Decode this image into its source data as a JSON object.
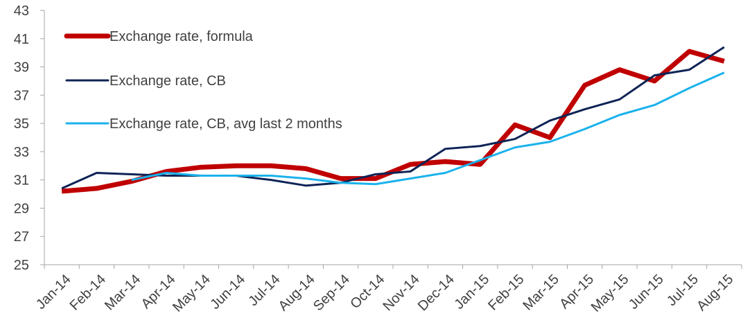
{
  "chart_data": {
    "type": "line",
    "categories": [
      "Jan-14",
      "Feb-14",
      "Mar-14",
      "Apr-14",
      "May-14",
      "Jun-14",
      "Jul-14",
      "Aug-14",
      "Sep-14",
      "Oct-14",
      "Nov-14",
      "Dec-14",
      "Jan-15",
      "Feb-15",
      "Mar-15",
      "Apr-15",
      "May-15",
      "Jun-15",
      "Jul-15",
      "Aug-15"
    ],
    "series": [
      {
        "name": "Exchange rate, formula",
        "color": "#c00000",
        "width": 7,
        "values": [
          30.2,
          30.4,
          30.9,
          31.6,
          31.9,
          32.0,
          32.0,
          31.8,
          31.1,
          31.1,
          32.1,
          32.3,
          32.1,
          34.9,
          34.0,
          37.7,
          38.8,
          38.0,
          40.1,
          39.4
        ]
      },
      {
        "name": "Exchange rate, CB",
        "color": "#0e2356",
        "width": 3,
        "values": [
          30.4,
          31.5,
          31.4,
          31.3,
          31.3,
          31.3,
          31.0,
          30.6,
          30.8,
          31.4,
          31.6,
          33.2,
          33.4,
          33.9,
          35.2,
          36.0,
          36.7,
          38.4,
          38.8,
          40.4
        ]
      },
      {
        "name": "Exchange rate, CB, avg last 2 months",
        "color": "#1ab2ec",
        "width": 3,
        "values": [
          null,
          null,
          31.0,
          31.5,
          31.3,
          31.3,
          31.3,
          31.1,
          30.8,
          30.7,
          31.1,
          31.5,
          32.4,
          33.3,
          33.7,
          34.6,
          35.6,
          36.3,
          37.5,
          38.6
        ]
      }
    ],
    "ylim": [
      25,
      43
    ],
    "yticks": [
      25,
      27,
      29,
      31,
      33,
      35,
      37,
      39,
      41,
      43
    ],
    "grid": false,
    "legend": "top-left"
  }
}
